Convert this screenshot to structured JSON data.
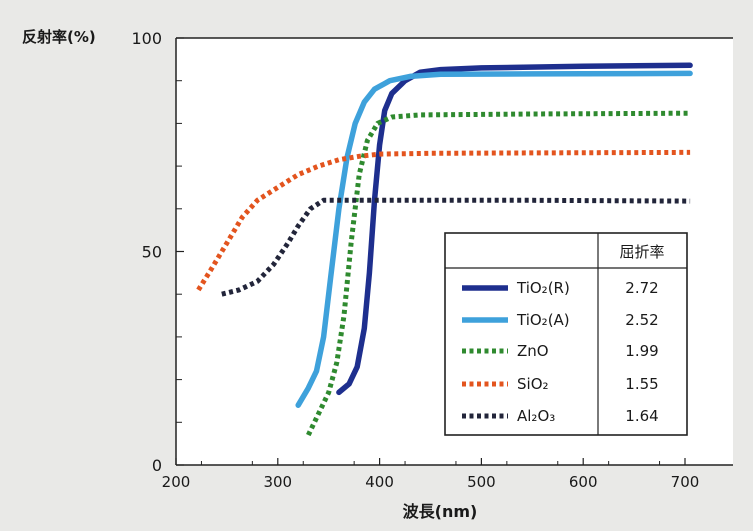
{
  "chart_data": {
    "type": "line",
    "ylabel": "反射率(%)",
    "xlabel": "波長(nm)",
    "xlim": [
      200,
      700
    ],
    "ylim": [
      0,
      100
    ],
    "x_ticks": [
      200,
      300,
      400,
      500,
      600,
      700
    ],
    "y_tick_labels": [
      0,
      50,
      100
    ],
    "y_minor_ticks": [
      10,
      20,
      30,
      40,
      60,
      70,
      80,
      90
    ],
    "grid": false,
    "legend": {
      "placement": "bottom-right",
      "header": "屈折率"
    },
    "series": [
      {
        "name": "TiO₂(R)",
        "refractive_index": "2.72",
        "color": "#1e2f8e",
        "style": "solid",
        "points": [
          [
            360,
            17
          ],
          [
            370,
            19
          ],
          [
            378,
            23
          ],
          [
            385,
            32
          ],
          [
            390,
            45
          ],
          [
            395,
            62
          ],
          [
            400,
            75
          ],
          [
            405,
            83
          ],
          [
            412,
            87
          ],
          [
            425,
            90
          ],
          [
            440,
            92
          ],
          [
            460,
            92.6
          ],
          [
            500,
            93
          ],
          [
            600,
            93.4
          ],
          [
            705,
            93.6
          ]
        ]
      },
      {
        "name": "TiO₂(A)",
        "refractive_index": "2.52",
        "color": "#3ea1db",
        "style": "solid",
        "points": [
          [
            320,
            14
          ],
          [
            330,
            18
          ],
          [
            338,
            22
          ],
          [
            345,
            30
          ],
          [
            352,
            44
          ],
          [
            360,
            60
          ],
          [
            368,
            72
          ],
          [
            376,
            80
          ],
          [
            385,
            85
          ],
          [
            395,
            88
          ],
          [
            410,
            90
          ],
          [
            430,
            91
          ],
          [
            460,
            91.5
          ],
          [
            550,
            91.6
          ],
          [
            705,
            91.7
          ]
        ]
      },
      {
        "name": "ZnO",
        "refractive_index": "1.99",
        "color": "#2f8a2f",
        "style": "dotted",
        "points": [
          [
            330,
            7
          ],
          [
            340,
            12
          ],
          [
            350,
            17
          ],
          [
            358,
            24
          ],
          [
            365,
            35
          ],
          [
            372,
            52
          ],
          [
            380,
            68
          ],
          [
            388,
            76
          ],
          [
            398,
            80
          ],
          [
            412,
            81.5
          ],
          [
            440,
            82
          ],
          [
            550,
            82.2
          ],
          [
            705,
            82.4
          ]
        ]
      },
      {
        "name": "SiO₂",
        "refractive_index": "1.55",
        "color": "#e3541e",
        "style": "dotted",
        "points": [
          [
            222,
            41
          ],
          [
            235,
            46
          ],
          [
            250,
            52
          ],
          [
            265,
            58
          ],
          [
            280,
            62
          ],
          [
            300,
            65
          ],
          [
            320,
            68
          ],
          [
            340,
            70
          ],
          [
            360,
            71.5
          ],
          [
            380,
            72.3
          ],
          [
            400,
            72.8
          ],
          [
            450,
            73
          ],
          [
            550,
            73.1
          ],
          [
            705,
            73.2
          ]
        ]
      },
      {
        "name": "Al₂O₃",
        "refractive_index": "1.64",
        "color": "#22253a",
        "style": "dotted",
        "points": [
          [
            245,
            40
          ],
          [
            262,
            41
          ],
          [
            280,
            43
          ],
          [
            296,
            47
          ],
          [
            310,
            52
          ],
          [
            320,
            56
          ],
          [
            332,
            60
          ],
          [
            345,
            62
          ],
          [
            370,
            62
          ],
          [
            450,
            62
          ],
          [
            550,
            62
          ],
          [
            705,
            61.8
          ]
        ]
      }
    ]
  }
}
